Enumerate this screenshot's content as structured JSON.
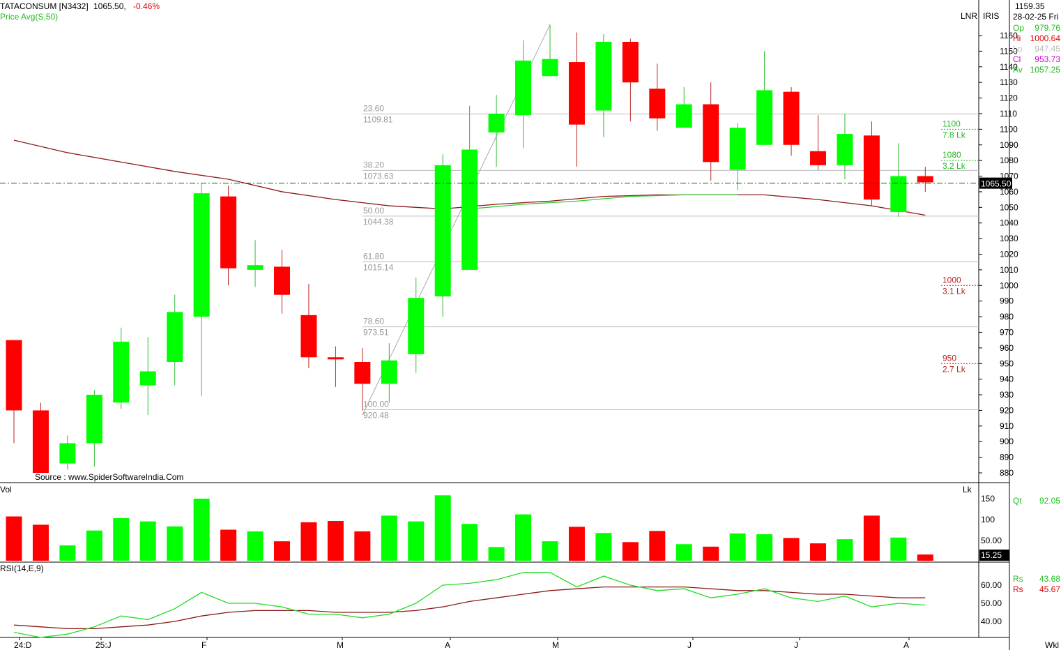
{
  "header": {
    "symbol": "TATACONSUM [N3432]",
    "last": "1065.50,",
    "change": "-0.46%",
    "indicator": "Price  Avg(S,50)",
    "source": "Source : www.SpiderSoftwareIndia.Com"
  },
  "top_right": {
    "lnr": "LNR",
    "iris": "IRIS",
    "cursor_price": "1159.35",
    "date": "28-02-25 Fri",
    "op_label": "Op",
    "op_value": "979.76",
    "hi_label": "Hi",
    "hi_value": "1000.64",
    "lo_label": "Lo",
    "lo_value": "947.45",
    "cl_label": "Cl",
    "cl_value": "953.73",
    "av_label": "Av",
    "av_value": "1057.25",
    "last_box": "1065.50"
  },
  "volume_panel": {
    "label": "Vol",
    "unit": "Lk",
    "qt_label": "Qt",
    "qt_value": "92.05",
    "last_box": "15.25",
    "ticks": [
      "150",
      "100",
      "50.00"
    ]
  },
  "rsi_panel": {
    "label": "RSI(14,E,9)",
    "rs1_label": "Rs",
    "rs1_value": "43.68",
    "rs2_label": "Rs",
    "rs2_value": "45.67",
    "ticks": [
      "60.00",
      "50.00",
      "40.00"
    ]
  },
  "x_axis": {
    "labels": [
      "24:D",
      "25:J",
      "F",
      "M",
      "A",
      "M",
      "J",
      "J",
      "A"
    ],
    "period": "Wkl"
  },
  "fibonacci": [
    {
      "pct": "23.60",
      "price": "1109.81"
    },
    {
      "pct": "38.20",
      "price": "1073.63"
    },
    {
      "pct": "50.00",
      "price": "1044.38"
    },
    {
      "pct": "61.80",
      "price": "1015.14"
    },
    {
      "pct": "78.60",
      "price": "973.51"
    },
    {
      "pct": "100.00",
      "price": "920.48"
    }
  ],
  "volume_profile": [
    {
      "price": "1100",
      "vol": "7.8 Lk",
      "color": "#22bb22"
    },
    {
      "price": "1080",
      "vol": "3.2 Lk",
      "color": "#22bb22"
    },
    {
      "price": "1000",
      "vol": "3.1 Lk",
      "color": "#bb2222"
    },
    {
      "price": "950",
      "vol": "2.7 Lk",
      "color": "#bb2222"
    }
  ],
  "colors": {
    "up": "#00ff00",
    "down": "#ff0000",
    "ma": "#8b1a1a",
    "rsi": "#22dd22",
    "rsi_signal": "#8b1a1a"
  },
  "chart_data": {
    "type": "candlestick",
    "price_ticks": [
      880,
      890,
      900,
      910,
      920,
      930,
      940,
      950,
      960,
      970,
      980,
      990,
      1000,
      1010,
      1020,
      1030,
      1040,
      1050,
      1060,
      1070,
      1080,
      1090,
      1100,
      1110,
      1120,
      1130,
      1140,
      1150,
      1160
    ],
    "ylim": [
      874,
      1170
    ],
    "current_price": 1065.5,
    "candles": [
      {
        "o": 965,
        "h": 965,
        "l": 899,
        "c": 920
      },
      {
        "o": 920,
        "h": 925,
        "l": 880,
        "c": 880
      },
      {
        "o": 886,
        "h": 904,
        "l": 882,
        "c": 899
      },
      {
        "o": 899,
        "h": 933,
        "l": 884,
        "c": 930
      },
      {
        "o": 925,
        "h": 973,
        "l": 921,
        "c": 964
      },
      {
        "o": 936,
        "h": 967,
        "l": 917,
        "c": 945
      },
      {
        "o": 951,
        "h": 994,
        "l": 936,
        "c": 983
      },
      {
        "o": 980,
        "h": 1065,
        "l": 929,
        "c": 1059
      },
      {
        "o": 1057,
        "h": 1064,
        "l": 1000,
        "c": 1011
      },
      {
        "o": 1010,
        "h": 1029,
        "l": 999,
        "c": 1013
      },
      {
        "o": 1012,
        "h": 1023,
        "l": 982,
        "c": 994
      },
      {
        "o": 981,
        "h": 1001,
        "l": 947,
        "c": 954
      },
      {
        "o": 954,
        "h": 961,
        "l": 935,
        "c": 953
      },
      {
        "o": 951,
        "h": 960,
        "l": 920,
        "c": 937
      },
      {
        "o": 937,
        "h": 963,
        "l": 925,
        "c": 952
      },
      {
        "o": 956,
        "h": 1005,
        "l": 944,
        "c": 992
      },
      {
        "o": 993,
        "h": 1084,
        "l": 980,
        "c": 1077
      },
      {
        "o": 1010,
        "h": 1115,
        "l": 1010,
        "c": 1087
      },
      {
        "o": 1098,
        "h": 1122,
        "l": 1076,
        "c": 1110
      },
      {
        "o": 1109,
        "h": 1157,
        "l": 1088,
        "c": 1144
      },
      {
        "o": 1134,
        "h": 1167,
        "l": 1134,
        "c": 1145
      },
      {
        "o": 1143,
        "h": 1162,
        "l": 1076,
        "c": 1103
      },
      {
        "o": 1112,
        "h": 1161,
        "l": 1095,
        "c": 1156
      },
      {
        "o": 1156,
        "h": 1158,
        "l": 1105,
        "c": 1130
      },
      {
        "o": 1126,
        "h": 1142,
        "l": 1099,
        "c": 1107
      },
      {
        "o": 1101,
        "h": 1127,
        "l": 1101,
        "c": 1116
      },
      {
        "o": 1116,
        "h": 1130,
        "l": 1067,
        "c": 1079
      },
      {
        "o": 1074,
        "h": 1104,
        "l": 1061,
        "c": 1101
      },
      {
        "o": 1090,
        "h": 1150,
        "l": 1090,
        "c": 1125
      },
      {
        "o": 1124,
        "h": 1127,
        "l": 1083,
        "c": 1090
      },
      {
        "o": 1086,
        "h": 1109,
        "l": 1074,
        "c": 1077
      },
      {
        "o": 1077,
        "h": 1110,
        "l": 1068,
        "c": 1097
      },
      {
        "o": 1096,
        "h": 1105,
        "l": 1051,
        "c": 1055
      },
      {
        "o": 1047,
        "h": 1091,
        "l": 1044,
        "c": 1070
      },
      {
        "o": 1070,
        "h": 1076,
        "l": 1060,
        "c": 1066
      }
    ],
    "moving_average": [
      {
        "i": 0,
        "v": 1093
      },
      {
        "i": 2,
        "v": 1085
      },
      {
        "i": 4,
        "v": 1079
      },
      {
        "i": 6,
        "v": 1073
      },
      {
        "i": 8,
        "v": 1068
      },
      {
        "i": 10,
        "v": 1060
      },
      {
        "i": 12,
        "v": 1055
      },
      {
        "i": 14,
        "v": 1051
      },
      {
        "i": 16,
        "v": 1049
      },
      {
        "i": 18,
        "v": 1052
      },
      {
        "i": 20,
        "v": 1054
      },
      {
        "i": 22,
        "v": 1057
      },
      {
        "i": 24,
        "v": 1058
      },
      {
        "i": 26,
        "v": 1058
      },
      {
        "i": 28,
        "v": 1058
      },
      {
        "i": 30,
        "v": 1055
      },
      {
        "i": 32,
        "v": 1051
      },
      {
        "i": 34,
        "v": 1045
      }
    ],
    "moving_average_2": [
      {
        "i": 17,
        "v": 1049
      },
      {
        "i": 19,
        "v": 1052
      },
      {
        "i": 21,
        "v": 1054
      },
      {
        "i": 23,
        "v": 1057
      },
      {
        "i": 25,
        "v": 1058
      },
      {
        "i": 27,
        "v": 1058
      }
    ],
    "volume": [
      107,
      87,
      37,
      73,
      103,
      95,
      83,
      150,
      75,
      71,
      47,
      93,
      96,
      71,
      109,
      95,
      158,
      89,
      33,
      112,
      47,
      82,
      67,
      45,
      72,
      40,
      34,
      66,
      64,
      55,
      42,
      52,
      109,
      56,
      15
    ],
    "volume_ylim": [
      0,
      170
    ],
    "rsi": [
      34,
      31,
      33,
      37,
      43,
      41,
      47,
      56,
      50,
      50,
      48,
      44,
      44,
      42,
      44,
      50,
      60,
      61,
      63,
      67,
      67,
      59,
      65,
      60,
      57,
      58,
      53,
      55,
      58,
      53,
      51,
      54,
      48,
      50,
      49
    ],
    "rsi_signal": [
      38,
      37,
      36,
      36,
      37,
      38,
      40,
      43,
      45,
      46,
      46,
      46,
      45,
      45,
      45,
      46,
      48,
      51,
      53,
      55,
      57,
      58,
      59,
      59,
      59,
      59,
      58,
      57,
      57,
      56,
      55,
      55,
      54,
      53,
      53
    ],
    "rsi_ylim": [
      30,
      70
    ],
    "fib_levels": [
      1109.81,
      1073.63,
      1044.38,
      1015.14,
      973.51,
      920.48
    ],
    "volume_profile_levels": [
      1100,
      1080,
      1000,
      950
    ]
  }
}
